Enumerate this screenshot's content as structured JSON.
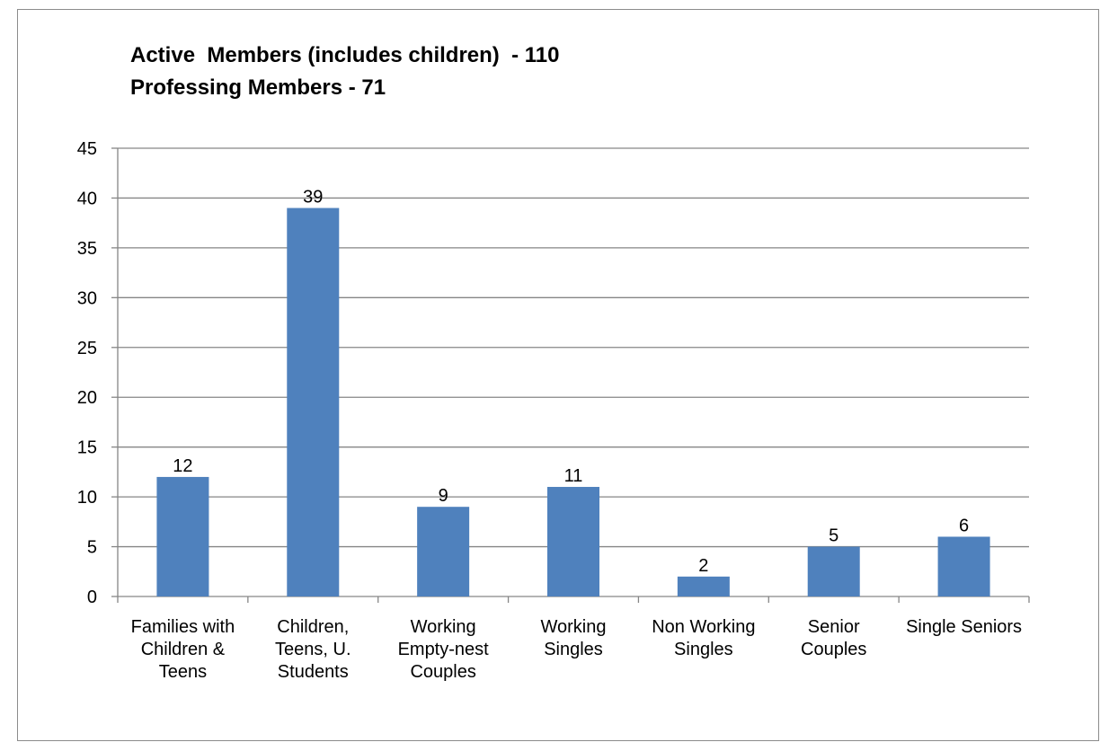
{
  "chart_data": {
    "type": "bar",
    "title_lines": [
      "Active  Members (includes children)  - 110",
      "Professing Members - 71"
    ],
    "categories": [
      [
        "Families with",
        "Children &",
        "Teens"
      ],
      [
        "Children,",
        "Teens, U.",
        "Students"
      ],
      [
        "Working",
        "Empty-nest",
        "Couples"
      ],
      [
        "Working",
        "Singles"
      ],
      [
        "Non Working",
        "Singles"
      ],
      [
        "Senior",
        "Couples"
      ],
      [
        "Single Seniors"
      ]
    ],
    "values": [
      12,
      39,
      9,
      11,
      2,
      5,
      6
    ],
    "data_labels": [
      "12",
      "39",
      "9",
      "11",
      "2",
      "5",
      "6"
    ],
    "ylim": [
      0,
      45
    ],
    "yticks": [
      "0",
      "5",
      "10",
      "15",
      "20",
      "25",
      "30",
      "35",
      "40",
      "45"
    ],
    "grid": true,
    "legend": "none",
    "colors": {
      "bar": "#4F81BD",
      "gridline": "#868686",
      "axis": "#868686",
      "border": "#8C8C8C"
    }
  }
}
